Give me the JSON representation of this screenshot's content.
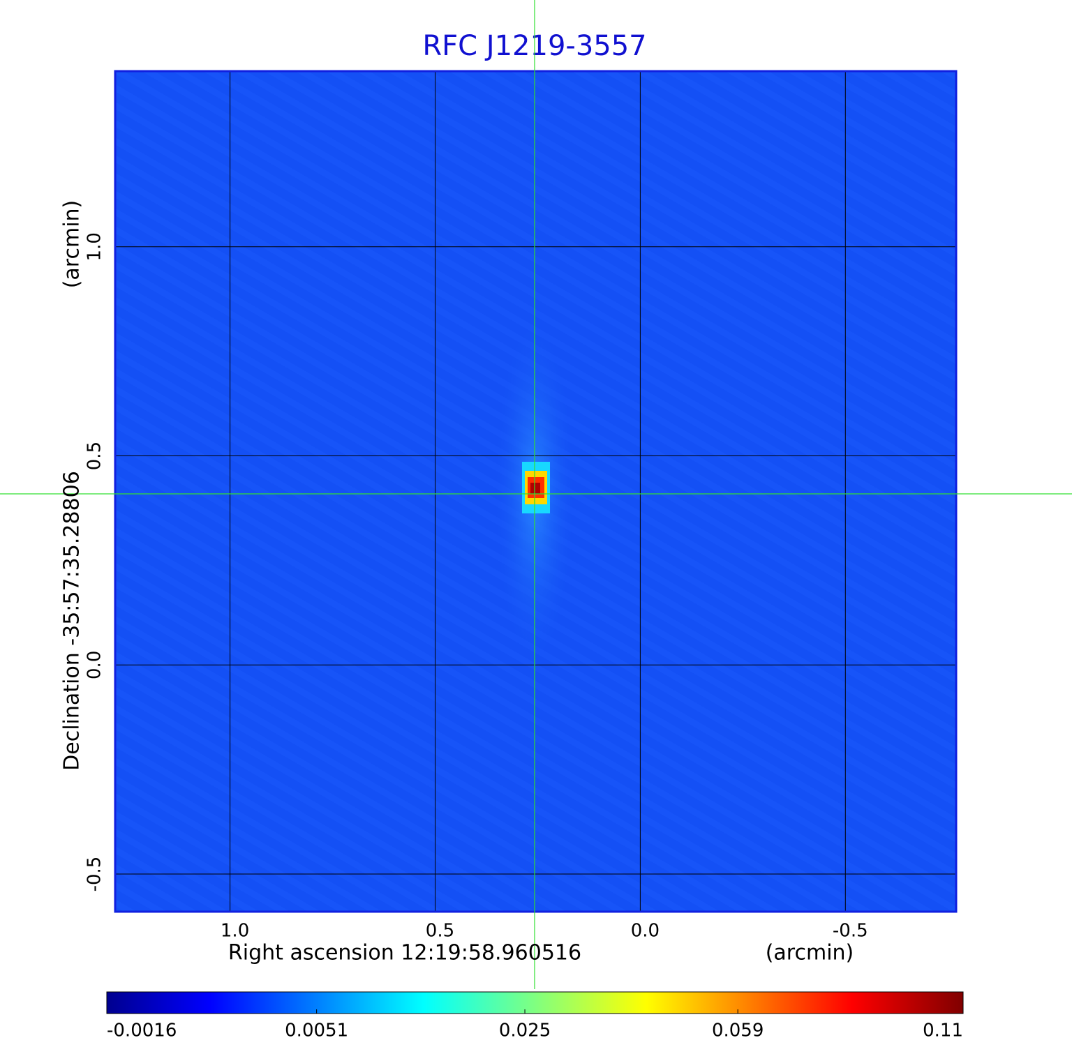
{
  "chart_data": {
    "type": "image",
    "title": "RFC J1219-3557",
    "x_label": "Right ascension  12:19:58.960516",
    "x_unit": "(arcmin)",
    "y_label": "Declination  -35:57:35.28806",
    "y_unit": "(arcmin)",
    "xlim": [
      1.28,
      -0.77
    ],
    "ylim": [
      -0.59,
      1.42
    ],
    "xticks": [
      {
        "value": 1,
        "label": "1.0"
      },
      {
        "value": 0.5,
        "label": "0.5"
      },
      {
        "value": 0,
        "label": "0.0"
      },
      {
        "value": -0.5,
        "label": "-0.5"
      }
    ],
    "yticks": [
      {
        "value": -0.5,
        "label": "-0.5"
      },
      {
        "value": 0,
        "label": "0.0"
      },
      {
        "value": 0.5,
        "label": "0.5"
      },
      {
        "value": 1,
        "label": "1.0"
      }
    ],
    "grid": true,
    "color_scale": "sqrt",
    "clim": [
      -0.0016,
      0.11
    ],
    "colorbar_ticks": [
      -0.0016,
      0.0051,
      0.025,
      0.059,
      0.11
    ]
  }
}
